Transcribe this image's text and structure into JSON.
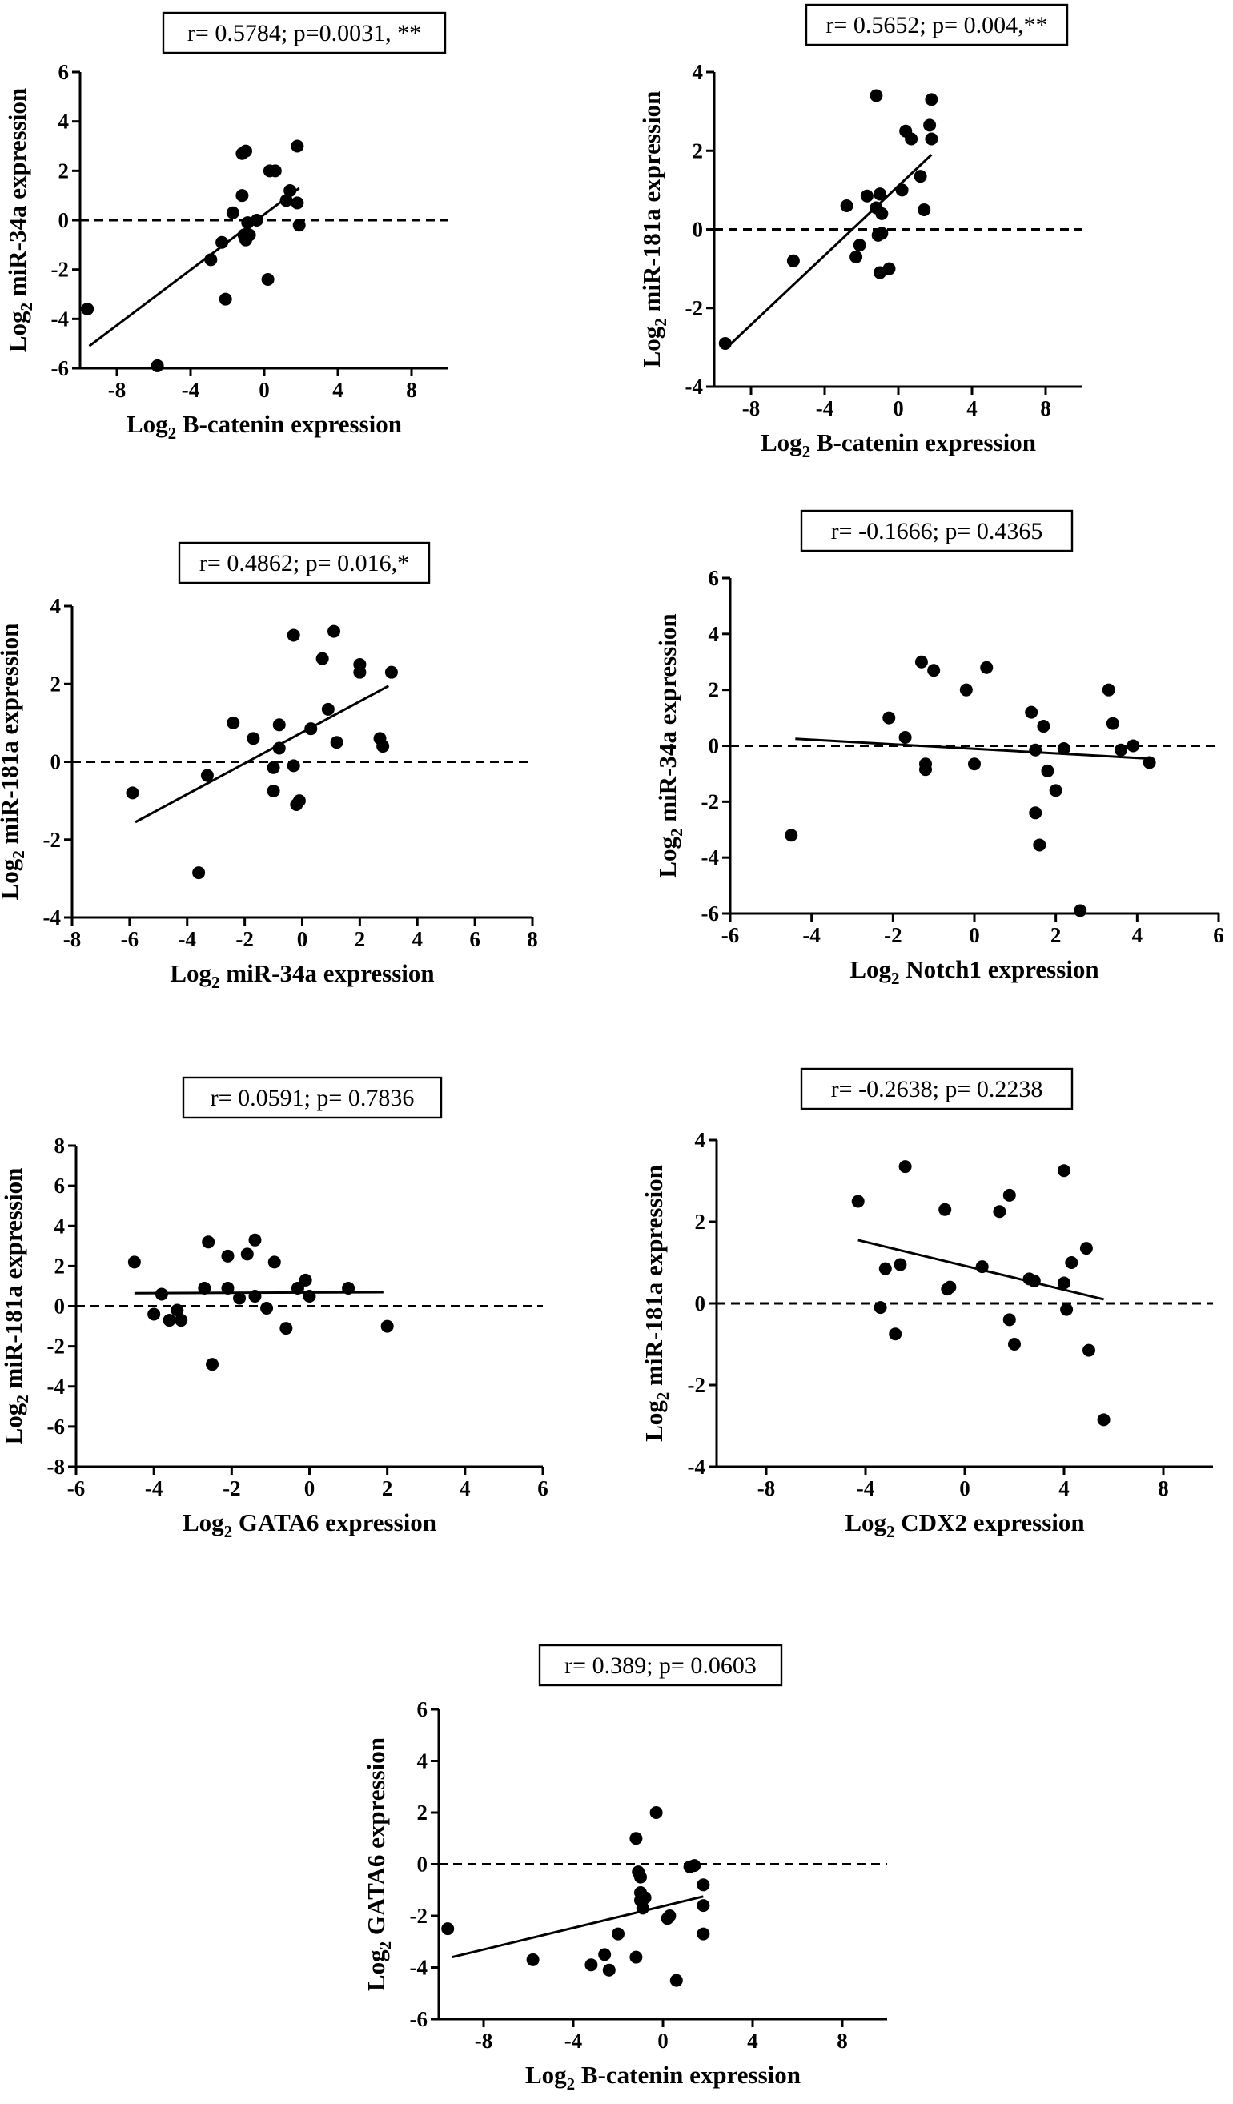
{
  "chart_data": [
    {
      "id": "p1",
      "type": "scatter",
      "stat": "r= 0.5784; p=0.0031, **",
      "xlabel": {
        "prefix": "Log",
        "sub": "2",
        "rest": " B-catenin expression"
      },
      "ylabel": {
        "prefix": "Log",
        "sub": "2",
        "rest": " miR-34a expression"
      },
      "xlim": [
        -10,
        10
      ],
      "ylim": [
        -6,
        6
      ],
      "xticks": [
        -8,
        -4,
        0,
        4,
        8
      ],
      "yticks": [
        -6,
        -4,
        -2,
        0,
        2,
        4,
        6
      ],
      "reference_y": 0,
      "fit": {
        "x": [
          -9.5,
          1.9
        ],
        "y": [
          -5.1,
          1.3
        ]
      },
      "points": [
        {
          "x": -9.6,
          "y": -3.6
        },
        {
          "x": -5.8,
          "y": -5.9
        },
        {
          "x": -2.9,
          "y": -1.6
        },
        {
          "x": -2.3,
          "y": -0.9
        },
        {
          "x": -2.1,
          "y": -3.2
        },
        {
          "x": -1.7,
          "y": 0.3
        },
        {
          "x": -1.2,
          "y": 2.7
        },
        {
          "x": -1.0,
          "y": 2.8
        },
        {
          "x": -1.2,
          "y": 1.0
        },
        {
          "x": -1.1,
          "y": -0.6
        },
        {
          "x": -1.0,
          "y": -0.8
        },
        {
          "x": -0.9,
          "y": -0.1
        },
        {
          "x": -0.8,
          "y": -0.6
        },
        {
          "x": -0.4,
          "y": 0.0
        },
        {
          "x": 0.2,
          "y": -2.4
        },
        {
          "x": 0.3,
          "y": 2.0
        },
        {
          "x": 0.6,
          "y": 2.0
        },
        {
          "x": 1.2,
          "y": 0.8
        },
        {
          "x": 1.4,
          "y": 1.2
        },
        {
          "x": 1.8,
          "y": 3.0
        },
        {
          "x": 1.8,
          "y": 0.7
        },
        {
          "x": 1.9,
          "y": -0.2
        }
      ]
    },
    {
      "id": "p2",
      "type": "scatter",
      "stat": "r= 0.5652; p= 0.004,**",
      "xlabel": {
        "prefix": "Log",
        "sub": "2",
        "rest": " B-catenin expression"
      },
      "ylabel": {
        "prefix": "Log",
        "sub": "2",
        "rest": " miR-181a expression"
      },
      "xlim": [
        -10,
        10
      ],
      "ylim": [
        -4,
        4
      ],
      "xticks": [
        -8,
        -4,
        0,
        4,
        8
      ],
      "yticks": [
        -4,
        -2,
        0,
        2,
        4
      ],
      "reference_y": 0,
      "fit": {
        "x": [
          -9.3,
          1.8
        ],
        "y": [
          -3.0,
          1.9
        ]
      },
      "points": [
        {
          "x": -9.4,
          "y": -2.9
        },
        {
          "x": -5.7,
          "y": -0.8
        },
        {
          "x": -2.8,
          "y": 0.6
        },
        {
          "x": -2.1,
          "y": -0.4
        },
        {
          "x": -2.3,
          "y": -0.7
        },
        {
          "x": -1.7,
          "y": 0.85
        },
        {
          "x": -1.2,
          "y": 3.4
        },
        {
          "x": -1.2,
          "y": 0.55
        },
        {
          "x": -1.0,
          "y": 0.9
        },
        {
          "x": -1.0,
          "y": 0.9
        },
        {
          "x": -1.1,
          "y": -0.15
        },
        {
          "x": -0.9,
          "y": 0.4
        },
        {
          "x": -0.9,
          "y": -0.1
        },
        {
          "x": -1.0,
          "y": -1.1
        },
        {
          "x": -0.5,
          "y": -1.0
        },
        {
          "x": 0.2,
          "y": 1.0
        },
        {
          "x": 0.4,
          "y": 2.5
        },
        {
          "x": 0.7,
          "y": 2.3
        },
        {
          "x": 1.2,
          "y": 1.35
        },
        {
          "x": 1.4,
          "y": 0.5
        },
        {
          "x": 1.7,
          "y": 2.65
        },
        {
          "x": 1.8,
          "y": 3.3
        },
        {
          "x": 1.8,
          "y": 2.3
        }
      ]
    },
    {
      "id": "p3",
      "type": "scatter",
      "stat": "r= 0.4862; p= 0.016,*",
      "xlabel": {
        "prefix": "Log",
        "sub": "2",
        "rest": " miR-34a expression"
      },
      "ylabel": {
        "prefix": "Log",
        "sub": "2",
        "rest": " miR-181a expression"
      },
      "xlim": [
        -8,
        8
      ],
      "ylim": [
        -4,
        4
      ],
      "xticks": [
        -8,
        -6,
        -4,
        -2,
        0,
        2,
        4,
        6,
        8
      ],
      "yticks": [
        -4,
        -2,
        0,
        2,
        4
      ],
      "reference_y": 0,
      "fit": {
        "x": [
          -5.8,
          3.0
        ],
        "y": [
          -1.55,
          1.95
        ]
      },
      "points": [
        {
          "x": -5.9,
          "y": -0.8
        },
        {
          "x": -3.6,
          "y": -2.85
        },
        {
          "x": -3.3,
          "y": -0.35
        },
        {
          "x": -2.4,
          "y": 1.0
        },
        {
          "x": -1.7,
          "y": 0.6
        },
        {
          "x": -1.0,
          "y": -0.15
        },
        {
          "x": -1.0,
          "y": -0.75
        },
        {
          "x": -0.8,
          "y": 0.95
        },
        {
          "x": -0.8,
          "y": 0.35
        },
        {
          "x": -0.3,
          "y": 3.25
        },
        {
          "x": -0.3,
          "y": -0.1
        },
        {
          "x": -0.2,
          "y": -1.1
        },
        {
          "x": -0.1,
          "y": -1.0
        },
        {
          "x": 0.3,
          "y": 0.85
        },
        {
          "x": 0.7,
          "y": 2.65
        },
        {
          "x": 0.9,
          "y": 1.35
        },
        {
          "x": 1.1,
          "y": 3.35
        },
        {
          "x": 1.2,
          "y": 0.5
        },
        {
          "x": 2.0,
          "y": 2.5
        },
        {
          "x": 2.0,
          "y": 2.3
        },
        {
          "x": 2.7,
          "y": 0.6
        },
        {
          "x": 2.8,
          "y": 0.4
        },
        {
          "x": 3.1,
          "y": 2.3
        }
      ]
    },
    {
      "id": "p4",
      "type": "scatter",
      "stat": "r= -0.1666; p= 0.4365",
      "xlabel": {
        "prefix": "Log",
        "sub": "2",
        "rest": " Notch1 expression"
      },
      "ylabel": {
        "prefix": "Log",
        "sub": "2",
        "rest": " miR-34a expression"
      },
      "xlim": [
        -6,
        6
      ],
      "ylim": [
        -6,
        6
      ],
      "xticks": [
        -6,
        -4,
        -2,
        0,
        2,
        4,
        6
      ],
      "yticks": [
        -6,
        -4,
        -2,
        0,
        2,
        4,
        6
      ],
      "reference_y": 0,
      "fit": {
        "x": [
          -4.4,
          4.2
        ],
        "y": [
          0.25,
          -0.45
        ]
      },
      "points": [
        {
          "x": -4.5,
          "y": -3.2
        },
        {
          "x": -2.1,
          "y": 1.0
        },
        {
          "x": -1.7,
          "y": 0.3
        },
        {
          "x": -1.3,
          "y": 3.0
        },
        {
          "x": -1.2,
          "y": -0.65
        },
        {
          "x": -1.2,
          "y": -0.85
        },
        {
          "x": -1.0,
          "y": 2.7
        },
        {
          "x": -0.2,
          "y": 2.0
        },
        {
          "x": 0.0,
          "y": -0.65
        },
        {
          "x": 0.3,
          "y": 2.8
        },
        {
          "x": 1.4,
          "y": 1.2
        },
        {
          "x": 1.5,
          "y": -2.4
        },
        {
          "x": 1.5,
          "y": -0.15
        },
        {
          "x": 1.6,
          "y": -3.55
        },
        {
          "x": 1.7,
          "y": 0.7
        },
        {
          "x": 1.8,
          "y": -0.9
        },
        {
          "x": 2.0,
          "y": -1.6
        },
        {
          "x": 2.2,
          "y": -0.1
        },
        {
          "x": 2.6,
          "y": -5.9
        },
        {
          "x": 3.3,
          "y": 2.0
        },
        {
          "x": 3.4,
          "y": 0.8
        },
        {
          "x": 3.6,
          "y": -0.15
        },
        {
          "x": 3.9,
          "y": 0.0
        },
        {
          "x": 4.3,
          "y": -0.6
        }
      ]
    },
    {
      "id": "p5",
      "type": "scatter",
      "stat": "r= 0.0591; p= 0.7836",
      "xlabel": {
        "prefix": "Log",
        "sub": "2",
        "rest": " GATA6 expression"
      },
      "ylabel": {
        "prefix": "Log",
        "sub": "2",
        "rest": " miR-181a expression"
      },
      "xlim": [
        -6,
        6
      ],
      "ylim": [
        -8,
        8
      ],
      "xticks": [
        -6,
        -4,
        -2,
        0,
        2,
        4,
        6
      ],
      "yticks": [
        -8,
        -6,
        -4,
        -2,
        0,
        2,
        4,
        6,
        8
      ],
      "reference_y": 0,
      "fit": {
        "x": [
          -4.5,
          1.9
        ],
        "y": [
          0.65,
          0.7
        ]
      },
      "points": [
        {
          "x": -4.5,
          "y": 2.2
        },
        {
          "x": -4.0,
          "y": -0.4
        },
        {
          "x": -3.8,
          "y": 0.6
        },
        {
          "x": -3.6,
          "y": -0.7
        },
        {
          "x": -3.4,
          "y": -0.2
        },
        {
          "x": -3.3,
          "y": -0.7
        },
        {
          "x": -2.7,
          "y": 0.9
        },
        {
          "x": -2.6,
          "y": 3.2
        },
        {
          "x": -2.5,
          "y": -2.9
        },
        {
          "x": -2.1,
          "y": 2.5
        },
        {
          "x": -2.1,
          "y": 0.9
        },
        {
          "x": -1.8,
          "y": 0.4
        },
        {
          "x": -1.6,
          "y": 2.6
        },
        {
          "x": -1.4,
          "y": 3.3
        },
        {
          "x": -1.4,
          "y": 0.5
        },
        {
          "x": -1.1,
          "y": -0.1
        },
        {
          "x": -0.9,
          "y": 2.2
        },
        {
          "x": -0.6,
          "y": -1.1
        },
        {
          "x": -0.3,
          "y": 0.9
        },
        {
          "x": 0.0,
          "y": 0.5
        },
        {
          "x": -0.1,
          "y": 1.3
        },
        {
          "x": 1.0,
          "y": 0.9
        },
        {
          "x": 2.0,
          "y": -1.0
        }
      ]
    },
    {
      "id": "p6",
      "type": "scatter",
      "stat": "r= -0.2638; p= 0.2238",
      "xlabel": {
        "prefix": "Log",
        "sub": "2",
        "rest": " CDX2 expression"
      },
      "ylabel": {
        "prefix": "Log",
        "sub": "2",
        "rest": " miR-181a expression"
      },
      "xlim": [
        -10,
        10
      ],
      "ylim": [
        -4,
        4
      ],
      "xticks": [
        -8,
        -4,
        0,
        4,
        8
      ],
      "yticks": [
        -4,
        -2,
        0,
        2,
        4
      ],
      "reference_y": 0,
      "fit": {
        "x": [
          -4.3,
          5.6
        ],
        "y": [
          1.55,
          0.1
        ]
      },
      "points": [
        {
          "x": -4.3,
          "y": 2.5
        },
        {
          "x": -3.4,
          "y": -0.1
        },
        {
          "x": -3.2,
          "y": 0.85
        },
        {
          "x": -2.8,
          "y": -0.75
        },
        {
          "x": -2.6,
          "y": 0.95
        },
        {
          "x": -2.4,
          "y": 3.35
        },
        {
          "x": -0.8,
          "y": 2.3
        },
        {
          "x": -0.6,
          "y": 0.4
        },
        {
          "x": -0.7,
          "y": 0.35
        },
        {
          "x": 0.7,
          "y": 0.9
        },
        {
          "x": 1.4,
          "y": 2.25
        },
        {
          "x": 1.8,
          "y": 2.65
        },
        {
          "x": 1.8,
          "y": -0.4
        },
        {
          "x": 2.0,
          "y": -1.0
        },
        {
          "x": 2.6,
          "y": 0.6
        },
        {
          "x": 2.8,
          "y": 0.55
        },
        {
          "x": 4.0,
          "y": 3.25
        },
        {
          "x": 4.0,
          "y": 0.5
        },
        {
          "x": 4.1,
          "y": -0.15
        },
        {
          "x": 4.3,
          "y": 1.0
        },
        {
          "x": 4.9,
          "y": 1.35
        },
        {
          "x": 5.0,
          "y": -1.15
        },
        {
          "x": 5.6,
          "y": -2.85
        }
      ]
    },
    {
      "id": "p7",
      "type": "scatter",
      "stat": "r= 0.389; p= 0.0603",
      "xlabel": {
        "prefix": "Log",
        "sub": "2",
        "rest": " B-catenin expression"
      },
      "ylabel": {
        "prefix": "Log",
        "sub": "2",
        "rest": " GATA6 expression"
      },
      "xlim": [
        -10,
        10
      ],
      "ylim": [
        -6,
        6
      ],
      "xticks": [
        -8,
        -4,
        0,
        4,
        8
      ],
      "yticks": [
        -6,
        -4,
        -2,
        0,
        2,
        4,
        6
      ],
      "reference_y": 0,
      "fit": {
        "x": [
          -9.4,
          1.8
        ],
        "y": [
          -3.6,
          -1.25
        ]
      },
      "points": [
        {
          "x": -9.6,
          "y": -2.5
        },
        {
          "x": -5.8,
          "y": -3.7
        },
        {
          "x": -3.2,
          "y": -3.9
        },
        {
          "x": -2.6,
          "y": -3.5
        },
        {
          "x": -2.4,
          "y": -4.1
        },
        {
          "x": -2.0,
          "y": -2.7
        },
        {
          "x": -1.2,
          "y": -3.6
        },
        {
          "x": -1.2,
          "y": 1.0
        },
        {
          "x": -1.1,
          "y": -0.3
        },
        {
          "x": -1.0,
          "y": -0.5
        },
        {
          "x": -1.0,
          "y": -1.1
        },
        {
          "x": -1.0,
          "y": -1.4
        },
        {
          "x": -0.9,
          "y": -1.7
        },
        {
          "x": -0.8,
          "y": -1.3
        },
        {
          "x": -0.3,
          "y": 2.0
        },
        {
          "x": 0.2,
          "y": -2.1
        },
        {
          "x": 0.3,
          "y": -2.0
        },
        {
          "x": 0.6,
          "y": -4.5
        },
        {
          "x": 1.2,
          "y": -0.1
        },
        {
          "x": 1.4,
          "y": -0.05
        },
        {
          "x": 1.8,
          "y": -0.8
        },
        {
          "x": 1.8,
          "y": -1.6
        },
        {
          "x": 1.8,
          "y": -2.7
        }
      ]
    }
  ]
}
